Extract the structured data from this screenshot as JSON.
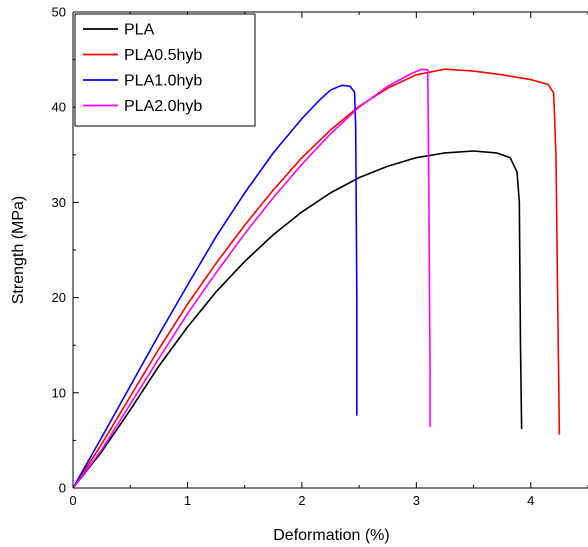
{
  "chart_data": {
    "type": "line",
    "xlabel": "Deformation (%)",
    "ylabel": "Strength (MPa)",
    "xlim": [
      0,
      4.5
    ],
    "ylim": [
      0,
      50
    ],
    "x_ticks": [
      0,
      1,
      2,
      3,
      4
    ],
    "y_ticks": [
      0,
      10,
      20,
      30,
      40,
      50
    ],
    "legend_position": "top-left",
    "grid": false,
    "series": [
      {
        "name": "PLA",
        "color": "#000000",
        "points": [
          [
            0,
            0
          ],
          [
            0.25,
            3.8
          ],
          [
            0.5,
            8.2
          ],
          [
            0.75,
            12.8
          ],
          [
            1.0,
            16.9
          ],
          [
            1.25,
            20.6
          ],
          [
            1.5,
            23.8
          ],
          [
            1.75,
            26.6
          ],
          [
            2.0,
            29.0
          ],
          [
            2.25,
            31.0
          ],
          [
            2.5,
            32.6
          ],
          [
            2.75,
            33.8
          ],
          [
            3.0,
            34.7
          ],
          [
            3.25,
            35.2
          ],
          [
            3.5,
            35.4
          ],
          [
            3.7,
            35.2
          ],
          [
            3.82,
            34.7
          ],
          [
            3.88,
            33.2
          ],
          [
            3.9,
            30.0
          ],
          [
            3.91,
            15.0
          ],
          [
            3.92,
            6.2
          ]
        ]
      },
      {
        "name": "PLA0.5hyb",
        "color": "#ff0000",
        "points": [
          [
            0,
            0
          ],
          [
            0.25,
            4.6
          ],
          [
            0.5,
            9.6
          ],
          [
            0.75,
            14.6
          ],
          [
            1.0,
            19.3
          ],
          [
            1.25,
            23.6
          ],
          [
            1.5,
            27.6
          ],
          [
            1.75,
            31.3
          ],
          [
            2.0,
            34.7
          ],
          [
            2.25,
            37.6
          ],
          [
            2.5,
            40.1
          ],
          [
            2.75,
            42.0
          ],
          [
            3.0,
            43.4
          ],
          [
            3.25,
            44.0
          ],
          [
            3.5,
            43.8
          ],
          [
            3.75,
            43.4
          ],
          [
            4.0,
            42.9
          ],
          [
            4.15,
            42.4
          ],
          [
            4.2,
            41.5
          ],
          [
            4.22,
            35.0
          ],
          [
            4.24,
            15.0
          ],
          [
            4.25,
            5.6
          ]
        ]
      },
      {
        "name": "PLA1.0hyb",
        "color": "#0000ff",
        "points": [
          [
            0,
            0
          ],
          [
            0.25,
            5.3
          ],
          [
            0.5,
            10.7
          ],
          [
            0.75,
            16.1
          ],
          [
            1.0,
            21.3
          ],
          [
            1.25,
            26.4
          ],
          [
            1.5,
            31.0
          ],
          [
            1.75,
            35.2
          ],
          [
            2.0,
            38.8
          ],
          [
            2.15,
            40.7
          ],
          [
            2.25,
            41.8
          ],
          [
            2.35,
            42.3
          ],
          [
            2.42,
            42.2
          ],
          [
            2.46,
            41.6
          ],
          [
            2.47,
            38.0
          ],
          [
            2.48,
            20.0
          ],
          [
            2.48,
            7.6
          ]
        ]
      },
      {
        "name": "PLA2.0hyb",
        "color": "#ff00ff",
        "points": [
          [
            0,
            0
          ],
          [
            0.25,
            4.0
          ],
          [
            0.5,
            8.8
          ],
          [
            0.75,
            13.6
          ],
          [
            1.0,
            18.3
          ],
          [
            1.25,
            22.6
          ],
          [
            1.5,
            26.7
          ],
          [
            1.75,
            30.5
          ],
          [
            2.0,
            34.0
          ],
          [
            2.25,
            37.2
          ],
          [
            2.5,
            40.0
          ],
          [
            2.75,
            42.2
          ],
          [
            2.95,
            43.5
          ],
          [
            3.05,
            44.0
          ],
          [
            3.1,
            43.9
          ],
          [
            3.11,
            30.0
          ],
          [
            3.12,
            12.0
          ],
          [
            3.12,
            6.4
          ]
        ]
      }
    ]
  }
}
